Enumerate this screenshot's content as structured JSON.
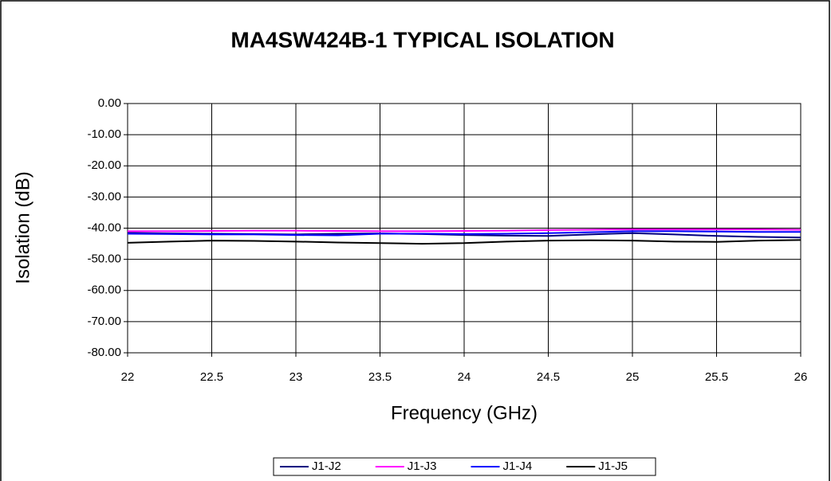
{
  "chart_data": {
    "type": "line",
    "title": "MA4SW424B-1 TYPICAL ISOLATION",
    "x_label": "Frequency (GHz)",
    "y_label": "Isolation (dB)",
    "x": [
      22,
      22.25,
      22.5,
      22.75,
      23,
      23.25,
      23.5,
      23.75,
      24,
      24.25,
      24.5,
      24.75,
      25,
      25.25,
      25.5,
      25.75,
      26
    ],
    "series": [
      {
        "name": "J1-J2",
        "color": "#000080",
        "values": [
          -41.5,
          -41.7,
          -41.8,
          -41.9,
          -42.0,
          -41.8,
          -41.7,
          -41.9,
          -42.2,
          -42.4,
          -42.5,
          -42.0,
          -41.6,
          -42.0,
          -42.5,
          -42.8,
          -43.0
        ]
      },
      {
        "name": "J1-J3",
        "color": "#ff00ff",
        "values": [
          -41.0,
          -41.0,
          -40.9,
          -40.8,
          -40.8,
          -40.9,
          -41.0,
          -41.0,
          -40.9,
          -40.8,
          -40.6,
          -40.5,
          -40.4,
          -40.4,
          -40.4,
          -40.4,
          -40.5
        ]
      },
      {
        "name": "J1-J4",
        "color": "#0000ff",
        "values": [
          -41.8,
          -41.9,
          -42.0,
          -42.0,
          -42.2,
          -42.3,
          -41.8,
          -41.8,
          -41.9,
          -41.8,
          -41.6,
          -41.3,
          -41.0,
          -41.0,
          -41.1,
          -41.2,
          -41.2
        ]
      },
      {
        "name": "J1-J5",
        "color": "#000000",
        "values": [
          -44.7,
          -44.3,
          -44.0,
          -44.1,
          -44.3,
          -44.6,
          -44.8,
          -45.0,
          -44.8,
          -44.3,
          -44.0,
          -43.9,
          -44.0,
          -44.3,
          -44.4,
          -44.0,
          -43.8
        ]
      }
    ],
    "xlim": [
      22,
      26
    ],
    "xticks": [
      22,
      22.5,
      23,
      23.5,
      24,
      24.5,
      25,
      25.5,
      26
    ],
    "ylim": [
      -80,
      0
    ],
    "yticks": [
      {
        "value": 0,
        "label": "0.00"
      },
      {
        "value": -10,
        "label": "-10.00"
      },
      {
        "value": -20,
        "label": "-20.00"
      },
      {
        "value": -30,
        "label": "-30.00"
      },
      {
        "value": -40,
        "label": "-40.00"
      },
      {
        "value": -50,
        "label": "-50.00"
      },
      {
        "value": -60,
        "label": "-60.00"
      },
      {
        "value": -70,
        "label": "-70.00"
      },
      {
        "value": -80,
        "label": "-80.00"
      }
    ],
    "grid": true,
    "legend": "bottom"
  }
}
